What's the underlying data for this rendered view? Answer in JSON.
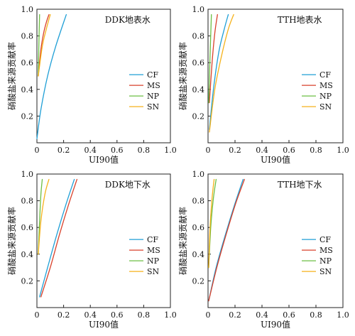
{
  "colors": {
    "CF": "#1f9fd6",
    "MS": "#d9412b",
    "NP": "#6cbf44",
    "SN": "#f5b21b"
  },
  "chart_data": [
    {
      "type": "line",
      "title": "DDK地表水",
      "xlabel": "UI90值",
      "ylabel": "硝酸盐来源贡献率",
      "xlim": [
        0,
        1.0
      ],
      "ylim": [
        0,
        1.0
      ],
      "xticks": [
        "0",
        "0.2",
        "0.4",
        "0.6",
        "0.8",
        "1.0"
      ],
      "yticks": [
        "0.2",
        "0.4",
        "0.6",
        "0.8",
        "1.0"
      ],
      "legend": "right",
      "series": [
        {
          "name": "CF",
          "x": [
            0.0,
            0.03,
            0.08,
            0.14,
            0.22
          ],
          "y": [
            0.03,
            0.25,
            0.5,
            0.72,
            0.96
          ]
        },
        {
          "name": "MS",
          "x": [
            0.01,
            0.03,
            0.05,
            0.07,
            0.09
          ],
          "y": [
            0.5,
            0.7,
            0.82,
            0.9,
            0.96
          ]
        },
        {
          "name": "NP",
          "x": [
            0.01,
            0.015,
            0.02
          ],
          "y": [
            0.5,
            0.75,
            0.96
          ]
        },
        {
          "name": "SN",
          "x": [
            0.01,
            0.04,
            0.07,
            0.1
          ],
          "y": [
            0.5,
            0.72,
            0.85,
            0.96
          ]
        }
      ]
    },
    {
      "type": "line",
      "title": "TTH地表水",
      "xlabel": "UI90值",
      "ylabel": "硝酸盐来源贡献率",
      "xlim": [
        0,
        1.0
      ],
      "ylim": [
        0,
        1.0
      ],
      "xticks": [
        "0",
        "0.2",
        "0.4",
        "0.6",
        "0.8",
        "1.0"
      ],
      "yticks": [
        "0.2",
        "0.4",
        "0.6",
        "0.8",
        "1.0"
      ],
      "legend": "right",
      "series": [
        {
          "name": "CF",
          "x": [
            0.01,
            0.04,
            0.08,
            0.12,
            0.15
          ],
          "y": [
            0.1,
            0.4,
            0.68,
            0.85,
            0.96
          ]
        },
        {
          "name": "MS",
          "x": [
            0.01,
            0.03,
            0.05,
            0.07
          ],
          "y": [
            0.3,
            0.6,
            0.82,
            0.96
          ]
        },
        {
          "name": "NP",
          "x": [
            0.005,
            0.015,
            0.025
          ],
          "y": [
            0.3,
            0.65,
            0.96
          ]
        },
        {
          "name": "SN",
          "x": [
            0.01,
            0.05,
            0.1,
            0.15,
            0.19
          ],
          "y": [
            0.08,
            0.4,
            0.65,
            0.85,
            0.96
          ]
        }
      ]
    },
    {
      "type": "line",
      "title": "DDK地下水",
      "xlabel": "UI90值",
      "ylabel": "硝酸盐来源贡献率",
      "xlim": [
        0,
        1.0
      ],
      "ylim": [
        0,
        1.0
      ],
      "xticks": [
        "0",
        "0.2",
        "0.4",
        "0.6",
        "0.8",
        "1.0"
      ],
      "yticks": [
        "0.2",
        "0.4",
        "0.6",
        "0.8",
        "1.0"
      ],
      "legend": "right",
      "series": [
        {
          "name": "CF",
          "x": [
            0.02,
            0.08,
            0.15,
            0.22,
            0.28
          ],
          "y": [
            0.08,
            0.3,
            0.55,
            0.78,
            0.96
          ]
        },
        {
          "name": "MS",
          "x": [
            0.03,
            0.1,
            0.17,
            0.24,
            0.3
          ],
          "y": [
            0.08,
            0.3,
            0.55,
            0.78,
            0.96
          ]
        },
        {
          "name": "NP",
          "x": [
            0.01,
            0.02,
            0.03,
            0.04
          ],
          "y": [
            0.4,
            0.65,
            0.85,
            0.96
          ]
        },
        {
          "name": "SN",
          "x": [
            0.01,
            0.03,
            0.06,
            0.09
          ],
          "y": [
            0.4,
            0.65,
            0.85,
            0.96
          ]
        }
      ]
    },
    {
      "type": "line",
      "title": "TTH地下水",
      "xlabel": "UI90值",
      "ylabel": "硝酸盐来源贡献率",
      "xlim": [
        0,
        1.0
      ],
      "ylim": [
        0,
        1.0
      ],
      "xticks": [
        "0",
        "0.2",
        "0.4",
        "0.6",
        "0.8",
        "1.0"
      ],
      "yticks": [
        "0.2",
        "0.4",
        "0.6",
        "0.8",
        "1.0"
      ],
      "legend": "right",
      "series": [
        {
          "name": "CF",
          "x": [
            0.005,
            0.06,
            0.13,
            0.2,
            0.26
          ],
          "y": [
            0.05,
            0.3,
            0.55,
            0.78,
            0.96
          ]
        },
        {
          "name": "MS",
          "x": [
            0.005,
            0.065,
            0.135,
            0.205,
            0.27
          ],
          "y": [
            0.05,
            0.3,
            0.55,
            0.78,
            0.96
          ]
        },
        {
          "name": "NP",
          "x": [
            0.005,
            0.02,
            0.04,
            0.06
          ],
          "y": [
            0.3,
            0.6,
            0.82,
            0.96
          ]
        },
        {
          "name": "SN",
          "x": [
            0.005,
            0.015,
            0.03,
            0.045
          ],
          "y": [
            0.3,
            0.6,
            0.82,
            0.96
          ]
        }
      ]
    }
  ]
}
